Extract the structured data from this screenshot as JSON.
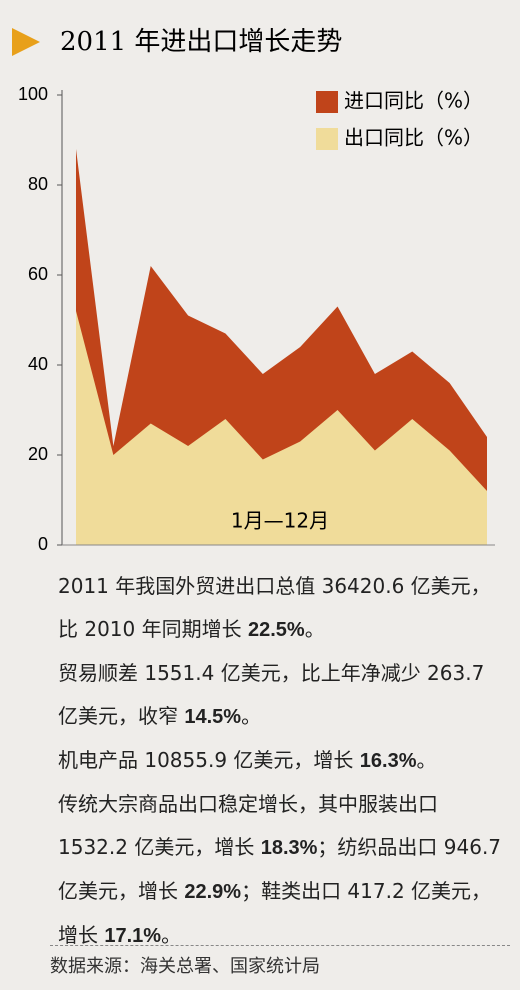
{
  "chart_data": {
    "type": "area",
    "title": "2011 年进出口增长走势",
    "xlabel": "1月—12月",
    "categories": [
      null,
      null,
      null,
      null,
      null,
      null,
      null,
      null,
      null,
      null,
      null,
      null
    ],
    "series": [
      {
        "name": "进口同比（%）",
        "color": "#c0441a",
        "values": [
          88,
          22,
          62,
          51,
          47,
          38,
          44,
          53,
          38,
          43,
          36,
          24
        ]
      },
      {
        "name": "出口同比（%）",
        "color": "#f0dc9a",
        "values": [
          52,
          20,
          27,
          22,
          28,
          19,
          23,
          30,
          21,
          28,
          21,
          12
        ]
      }
    ],
    "ylim": [
      0,
      100
    ],
    "yticks": [
      0,
      20,
      40,
      60,
      80,
      100
    ],
    "grid": false,
    "legend": "top-right"
  },
  "notes": [
    [
      {
        "text": "2011 年我国外贸进出口总值 36420.6 亿美元，比 2010 年同期增长 ",
        "bold": false
      },
      {
        "text": "22.5%",
        "bold": true
      },
      {
        "text": "。",
        "bold": false
      }
    ],
    [
      {
        "text": "贸易顺差 1551.4 亿美元，比上年净减少 263.7 亿美元，收窄 ",
        "bold": false
      },
      {
        "text": "14.5%",
        "bold": true
      },
      {
        "text": "。",
        "bold": false
      }
    ],
    [
      {
        "text": "机电产品 10855.9 亿美元，增长 ",
        "bold": false
      },
      {
        "text": "16.3%",
        "bold": true
      },
      {
        "text": "。",
        "bold": false
      }
    ],
    [
      {
        "text": "传统大宗商品出口稳定增长，其中服装出口 1532.2 亿美元，增长 ",
        "bold": false
      },
      {
        "text": "18.3%",
        "bold": true
      },
      {
        "text": "；纺织品出口 946.7 亿美元，增长 ",
        "bold": false
      },
      {
        "text": "22.9%",
        "bold": true
      },
      {
        "text": "；鞋类出口 417.2 亿美元，增长 ",
        "bold": false
      },
      {
        "text": "17.1%",
        "bold": true
      },
      {
        "text": "。",
        "bold": false
      }
    ]
  ],
  "source": "数据来源：海关总署、国家统计局"
}
